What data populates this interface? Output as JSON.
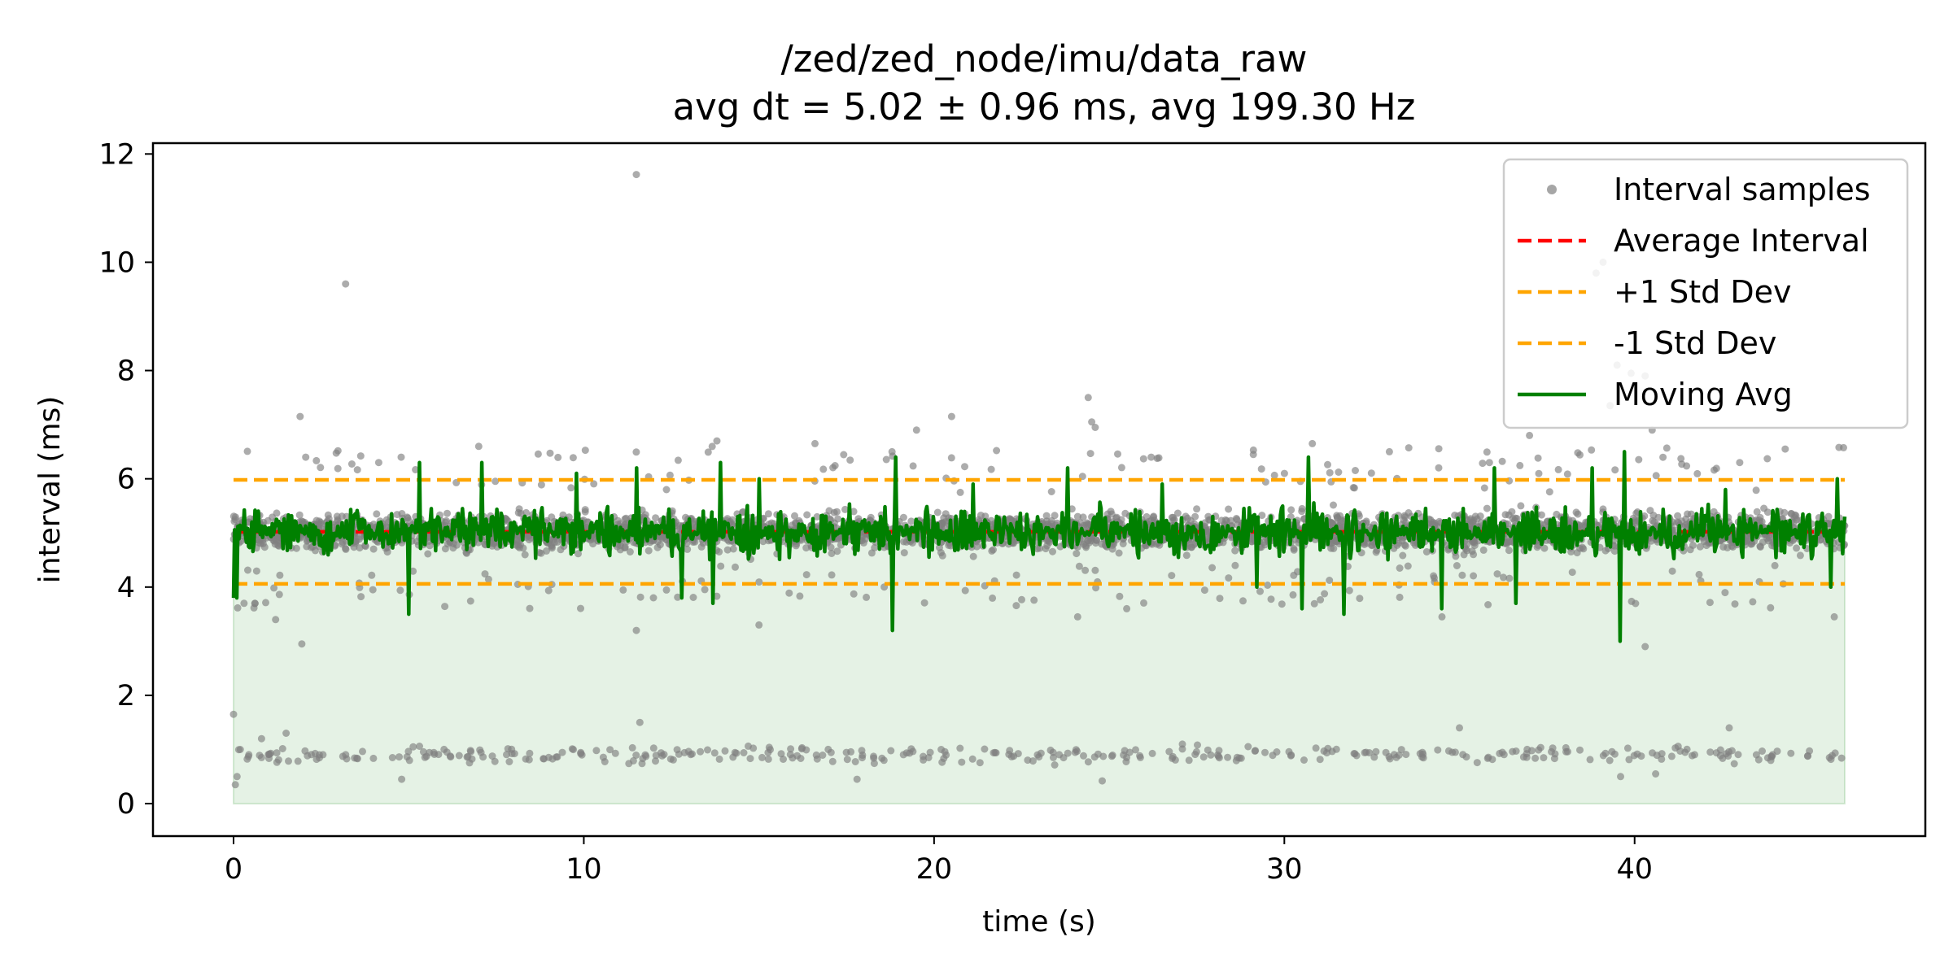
{
  "chart_data": {
    "type": "scatter",
    "title": "/zed/zed_node/imu/data_raw",
    "subtitle": "avg dt = 5.02 ± 0.96 ms, avg 199.30 Hz",
    "xlabel": "time (s)",
    "ylabel": "interval (ms)",
    "xlim": [
      -2.3,
      48.3
    ],
    "ylim": [
      -0.6,
      12.2
    ],
    "xticks": [
      0,
      10,
      20,
      30,
      40
    ],
    "yticks": [
      0,
      2,
      4,
      6,
      8,
      10,
      12
    ],
    "x_range": [
      0,
      46
    ],
    "grid": false,
    "legend_position": "top-right",
    "stats": {
      "mean": 5.02,
      "std": 0.96,
      "upper": 5.98,
      "lower": 4.06,
      "rate_hz": 199.3
    },
    "outliers": [
      {
        "x": 0.0,
        "y": 1.65
      },
      {
        "x": 0.05,
        "y": 0.35
      },
      {
        "x": 0.1,
        "y": 0.5
      },
      {
        "x": 1.9,
        "y": 7.15
      },
      {
        "x": 1.95,
        "y": 2.95
      },
      {
        "x": 3.2,
        "y": 9.6
      },
      {
        "x": 11.5,
        "y": 11.62
      },
      {
        "x": 16.6,
        "y": 6.65
      },
      {
        "x": 19.5,
        "y": 6.9
      },
      {
        "x": 20.5,
        "y": 7.15
      },
      {
        "x": 24.4,
        "y": 7.5
      },
      {
        "x": 24.5,
        "y": 7.05
      },
      {
        "x": 24.6,
        "y": 6.95
      },
      {
        "x": 24.1,
        "y": 3.45
      },
      {
        "x": 38.9,
        "y": 9.8
      },
      {
        "x": 39.1,
        "y": 10.0
      },
      {
        "x": 39.5,
        "y": 8.1
      },
      {
        "x": 39.9,
        "y": 7.95
      },
      {
        "x": 40.3,
        "y": 7.9
      },
      {
        "x": 40.5,
        "y": 6.9
      },
      {
        "x": 37.0,
        "y": 6.8
      },
      {
        "x": 39.3,
        "y": 7.35
      },
      {
        "x": 11.5,
        "y": 3.2
      },
      {
        "x": 15.0,
        "y": 3.3
      },
      {
        "x": 40.3,
        "y": 2.9
      },
      {
        "x": 34.5,
        "y": 3.45
      },
      {
        "x": 45.7,
        "y": 3.45
      },
      {
        "x": 1.2,
        "y": 3.4
      },
      {
        "x": 0.3,
        "y": 3.7
      },
      {
        "x": 30.8,
        "y": 6.65
      },
      {
        "x": 33.0,
        "y": 6.5
      },
      {
        "x": 44.3,
        "y": 6.55
      },
      {
        "x": 7.0,
        "y": 6.6
      },
      {
        "x": 13.8,
        "y": 6.7
      },
      {
        "x": 18.8,
        "y": 6.5
      },
      {
        "x": 26.2,
        "y": 6.4
      },
      {
        "x": 43.0,
        "y": 6.3
      },
      {
        "x": 25.5,
        "y": 3.6
      },
      {
        "x": 0.8,
        "y": 1.2
      },
      {
        "x": 1.5,
        "y": 1.3
      },
      {
        "x": 17.8,
        "y": 0.45
      },
      {
        "x": 24.8,
        "y": 0.42
      },
      {
        "x": 39.6,
        "y": 0.5
      },
      {
        "x": 40.6,
        "y": 0.55
      },
      {
        "x": 4.8,
        "y": 0.45
      },
      {
        "x": 35.0,
        "y": 1.4
      },
      {
        "x": 42.7,
        "y": 1.4
      },
      {
        "x": 11.6,
        "y": 1.5
      }
    ],
    "series": [
      {
        "name": "Interval samples",
        "kind": "scatter",
        "color": "#808080",
        "center": 5.02,
        "band": 0.55,
        "low_cluster": 0.9,
        "low_spread": 0.22
      },
      {
        "name": "Average Interval",
        "kind": "hline",
        "y": 5.02,
        "color": "#ff0000",
        "dash": true
      },
      {
        "name": "+1 Std Dev",
        "kind": "hline",
        "y": 5.98,
        "color": "#ffa500",
        "dash": true
      },
      {
        "name": "-1 Std Dev",
        "kind": "hline",
        "y": 4.06,
        "color": "#ffa500",
        "dash": true
      },
      {
        "name": "Moving Avg",
        "kind": "line",
        "color": "#008000",
        "fill_color": "#008000",
        "fill_opacity": 0.1,
        "spikes": [
          {
            "x": 0.1,
            "y": 3.8
          },
          {
            "x": 5.0,
            "y": 3.5
          },
          {
            "x": 5.3,
            "y": 6.3
          },
          {
            "x": 7.1,
            "y": 6.3
          },
          {
            "x": 9.8,
            "y": 6.1
          },
          {
            "x": 11.5,
            "y": 6.2
          },
          {
            "x": 12.8,
            "y": 3.8
          },
          {
            "x": 13.9,
            "y": 6.3
          },
          {
            "x": 13.7,
            "y": 3.7
          },
          {
            "x": 15.0,
            "y": 6.0
          },
          {
            "x": 18.8,
            "y": 3.2
          },
          {
            "x": 18.9,
            "y": 6.4
          },
          {
            "x": 21.1,
            "y": 5.9
          },
          {
            "x": 23.8,
            "y": 6.2
          },
          {
            "x": 26.5,
            "y": 5.9
          },
          {
            "x": 29.2,
            "y": 4.0
          },
          {
            "x": 30.7,
            "y": 6.4
          },
          {
            "x": 30.5,
            "y": 3.6
          },
          {
            "x": 31.7,
            "y": 3.5
          },
          {
            "x": 34.5,
            "y": 3.6
          },
          {
            "x": 36.0,
            "y": 6.2
          },
          {
            "x": 36.6,
            "y": 3.7
          },
          {
            "x": 38.8,
            "y": 6.2
          },
          {
            "x": 39.6,
            "y": 3.0
          },
          {
            "x": 39.7,
            "y": 6.5
          },
          {
            "x": 42.6,
            "y": 5.8
          },
          {
            "x": 45.8,
            "y": 6.0
          },
          {
            "x": 45.6,
            "y": 4.0
          }
        ]
      }
    ]
  }
}
